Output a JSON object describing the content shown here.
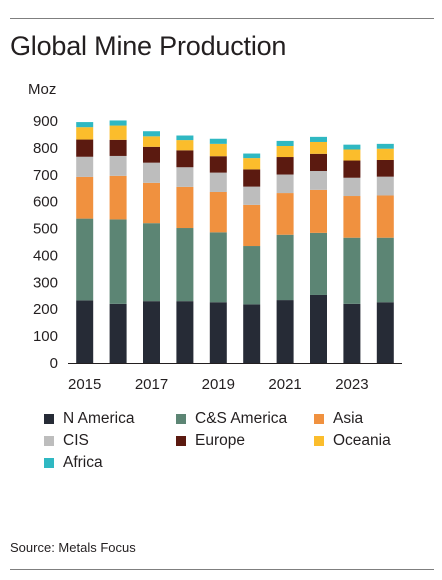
{
  "title": "Global Mine Production",
  "unit": "Moz",
  "source": "Source: Metals Focus",
  "chart_data": {
    "type": "bar",
    "stacked": true,
    "categories": [
      "2015",
      "2016",
      "2017",
      "2018",
      "2019",
      "2020",
      "2021",
      "2022",
      "2023",
      "2024"
    ],
    "x_tick_labels": [
      "2015",
      "2017",
      "2019",
      "2021",
      "2023"
    ],
    "ylim": [
      0,
      900
    ],
    "yticks": [
      0,
      100,
      200,
      300,
      400,
      500,
      600,
      700,
      800,
      900
    ],
    "ylabel": "Moz",
    "grid": false,
    "legend_position": "bottom",
    "series": [
      {
        "name": "N America",
        "color": "#262b36",
        "values": [
          233,
          220,
          230,
          230,
          226,
          218,
          234,
          253,
          220,
          226
        ]
      },
      {
        "name": "C&S America",
        "color": "#5c8574",
        "values": [
          304,
          314,
          290,
          272,
          260,
          217,
          243,
          231,
          246,
          240
        ]
      },
      {
        "name": "Asia",
        "color": "#f0913f",
        "values": [
          155,
          162,
          150,
          153,
          150,
          153,
          155,
          160,
          155,
          157
        ]
      },
      {
        "name": "CIS",
        "color": "#bdbdbd",
        "values": [
          75,
          74,
          75,
          73,
          72,
          68,
          69,
          70,
          68,
          70
        ]
      },
      {
        "name": "Europe",
        "color": "#5b1a10",
        "values": [
          64,
          60,
          59,
          63,
          61,
          64,
          65,
          64,
          64,
          62
        ]
      },
      {
        "name": "Oceania",
        "color": "#fbbd2c",
        "values": [
          46,
          53,
          39,
          38,
          46,
          42,
          41,
          44,
          41,
          42
        ]
      },
      {
        "name": "Africa",
        "color": "#2fb8c2",
        "values": [
          19,
          19,
          19,
          17,
          19,
          17,
          19,
          19,
          18,
          18
        ]
      }
    ]
  }
}
